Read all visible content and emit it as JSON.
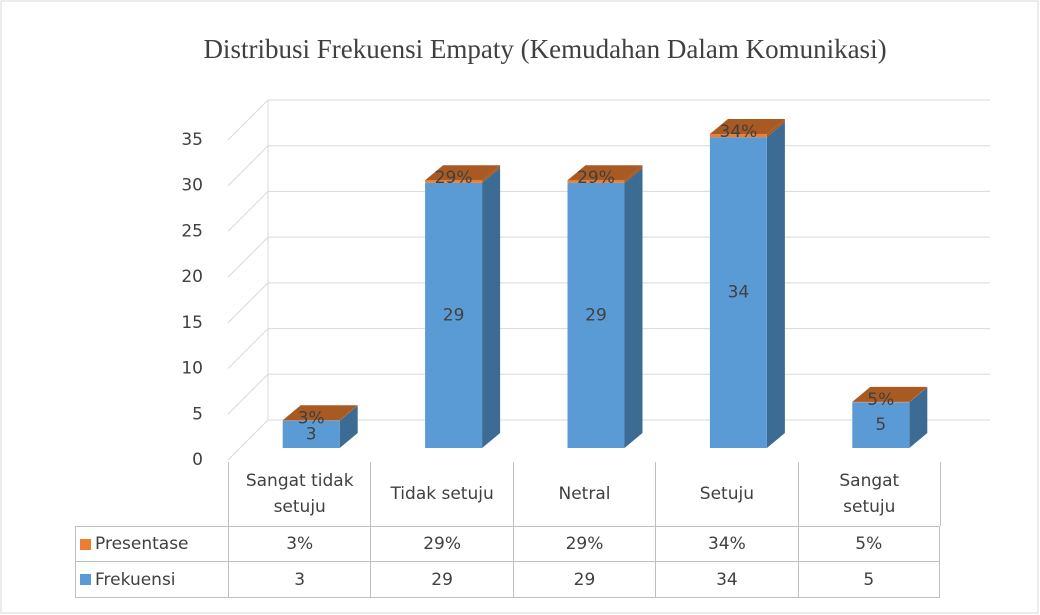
{
  "chart_data": {
    "type": "bar3d_stacked",
    "title": "Distribusi Frekuensi Empaty (Kemudahan Dalam Komunikasi)",
    "categories": [
      "Sangat tidak setuju",
      "Tidak setuju",
      "Netral",
      "Setuju",
      "Sangat setuju"
    ],
    "series": [
      {
        "name": "Presentase",
        "color": "#ed7d31",
        "values": [
          0.03,
          0.29,
          0.29,
          0.34,
          0.05
        ],
        "value_labels": [
          "3%",
          "29%",
          "29%",
          "34%",
          "5%"
        ]
      },
      {
        "name": "Frekuensi",
        "color": "#5b9bd5",
        "values": [
          3,
          29,
          29,
          34,
          5
        ]
      }
    ],
    "ylim": [
      0,
      35
    ],
    "yticks": [
      0,
      5,
      10,
      15,
      20,
      25,
      30,
      35
    ],
    "grid": true,
    "data_table": true
  }
}
